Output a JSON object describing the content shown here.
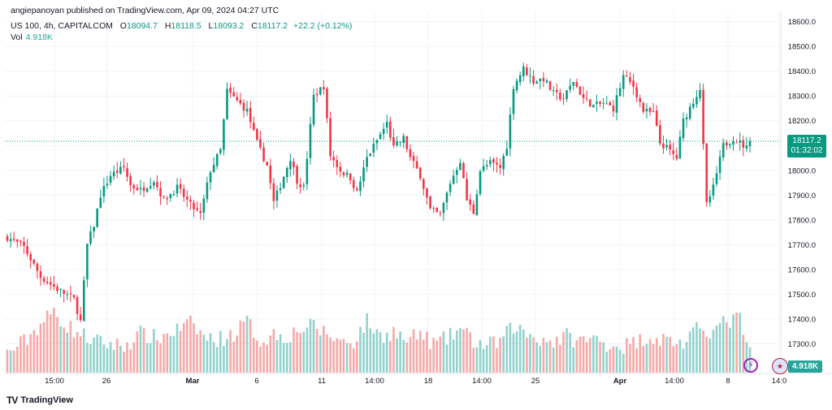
{
  "header": {
    "publisher_line": "angiepanoyan published on TradingView.com, Apr 09, 2024 04:27 UTC",
    "symbol": "US 100, 4h, CAPITALCOM",
    "open_label": "O",
    "open": "18094.7",
    "high_label": "H",
    "high": "18118.5",
    "low_label": "L",
    "low": "18093.2",
    "close_label": "C",
    "close": "18117.2",
    "change": "+22.2 (+0.12%)",
    "vol_label": "Vol",
    "vol_value": "4.918K"
  },
  "price_badge": {
    "price": "18117.2",
    "countdown": "01:32:02"
  },
  "vol_badge": "4.918K",
  "branding": "TradingView",
  "icons": {
    "alert": "bolt-icon",
    "region": "us-flag-icon"
  },
  "colors": {
    "up": "#089981",
    "down": "#f23645",
    "vol_up": "#26a69a",
    "vol_down": "#ef5350"
  },
  "chart_data": {
    "type": "candlestick",
    "symbol": "US 100",
    "timeframe": "4h",
    "ylim": [
      17200,
      18620
    ],
    "y_ticks": [
      17300,
      17400,
      17500,
      17600,
      17700,
      17800,
      17900,
      18000,
      18100,
      18200,
      18300,
      18400,
      18500,
      18600
    ],
    "x_ticks": [
      "15:00",
      "26",
      "Mar",
      "6",
      "11",
      "14:00",
      "18",
      "14:00",
      "25",
      "Apr",
      "14:00",
      "8",
      "14:0"
    ],
    "last_price": 18117.2,
    "anchors": [
      [
        0,
        17730
      ],
      [
        5,
        17690
      ],
      [
        10,
        17570
      ],
      [
        15,
        17520
      ],
      [
        20,
        17480
      ],
      [
        22,
        17390
      ],
      [
        24,
        17700
      ],
      [
        26,
        17780
      ],
      [
        28,
        17900
      ],
      [
        31,
        17980
      ],
      [
        35,
        18010
      ],
      [
        37,
        17940
      ],
      [
        40,
        17920
      ],
      [
        44,
        17960
      ],
      [
        47,
        17880
      ],
      [
        51,
        17930
      ],
      [
        55,
        17860
      ],
      [
        58,
        17820
      ],
      [
        61,
        18000
      ],
      [
        64,
        18080
      ],
      [
        66,
        18320
      ],
      [
        69,
        18280
      ],
      [
        72,
        18240
      ],
      [
        75,
        18110
      ],
      [
        78,
        18020
      ],
      [
        80,
        17870
      ],
      [
        82,
        17940
      ],
      [
        85,
        18050
      ],
      [
        87,
        17960
      ],
      [
        89,
        17930
      ],
      [
        92,
        18300
      ],
      [
        95,
        18340
      ],
      [
        97,
        18060
      ],
      [
        100,
        18000
      ],
      [
        103,
        17970
      ],
      [
        105,
        17910
      ],
      [
        108,
        18050
      ],
      [
        111,
        18120
      ],
      [
        114,
        18190
      ],
      [
        116,
        18090
      ],
      [
        119,
        18130
      ],
      [
        121,
        18050
      ],
      [
        124,
        17980
      ],
      [
        127,
        17840
      ],
      [
        130,
        17820
      ],
      [
        133,
        17950
      ],
      [
        136,
        18040
      ],
      [
        138,
        17880
      ],
      [
        140,
        17830
      ],
      [
        142,
        18000
      ],
      [
        145,
        18030
      ],
      [
        148,
        18010
      ],
      [
        150,
        18100
      ],
      [
        152,
        18340
      ],
      [
        155,
        18410
      ],
      [
        158,
        18360
      ],
      [
        161,
        18370
      ],
      [
        164,
        18310
      ],
      [
        167,
        18290
      ],
      [
        170,
        18360
      ],
      [
        173,
        18290
      ],
      [
        176,
        18260
      ],
      [
        179,
        18270
      ],
      [
        182,
        18250
      ],
      [
        185,
        18380
      ],
      [
        188,
        18340
      ],
      [
        191,
        18240
      ],
      [
        194,
        18230
      ],
      [
        196,
        18110
      ],
      [
        198,
        18090
      ],
      [
        201,
        18050
      ],
      [
        203,
        18200
      ],
      [
        206,
        18280
      ],
      [
        208,
        18330
      ],
      [
        210,
        17860
      ],
      [
        212,
        17930
      ],
      [
        215,
        18100
      ],
      [
        218,
        18130
      ],
      [
        222,
        18090
      ],
      [
        223,
        18117
      ]
    ],
    "volume_anchors": [
      [
        0,
        17250
      ],
      [
        6,
        17310
      ],
      [
        10,
        17370
      ],
      [
        14,
        17420
      ],
      [
        18,
        17360
      ],
      [
        22,
        17330
      ],
      [
        26,
        17300
      ],
      [
        30,
        17290
      ],
      [
        35,
        17280
      ],
      [
        40,
        17330
      ],
      [
        45,
        17310
      ],
      [
        50,
        17340
      ],
      [
        55,
        17370
      ],
      [
        60,
        17310
      ],
      [
        64,
        17310
      ],
      [
        68,
        17330
      ],
      [
        72,
        17380
      ],
      [
        76,
        17300
      ],
      [
        80,
        17330
      ],
      [
        84,
        17320
      ],
      [
        88,
        17350
      ],
      [
        92,
        17360
      ],
      [
        96,
        17330
      ],
      [
        100,
        17300
      ],
      [
        104,
        17300
      ],
      [
        108,
        17380
      ],
      [
        112,
        17320
      ],
      [
        116,
        17340
      ],
      [
        120,
        17300
      ],
      [
        124,
        17330
      ],
      [
        128,
        17290
      ],
      [
        132,
        17310
      ],
      [
        136,
        17350
      ],
      [
        140,
        17300
      ],
      [
        144,
        17280
      ],
      [
        148,
        17300
      ],
      [
        152,
        17360
      ],
      [
        156,
        17330
      ],
      [
        160,
        17310
      ],
      [
        164,
        17300
      ],
      [
        168,
        17320
      ],
      [
        172,
        17300
      ],
      [
        176,
        17310
      ],
      [
        180,
        17290
      ],
      [
        184,
        17280
      ],
      [
        188,
        17290
      ],
      [
        192,
        17320
      ],
      [
        196,
        17310
      ],
      [
        200,
        17300
      ],
      [
        204,
        17290
      ],
      [
        208,
        17360
      ],
      [
        212,
        17340
      ],
      [
        216,
        17380
      ],
      [
        220,
        17390
      ],
      [
        223,
        17250
      ]
    ]
  }
}
